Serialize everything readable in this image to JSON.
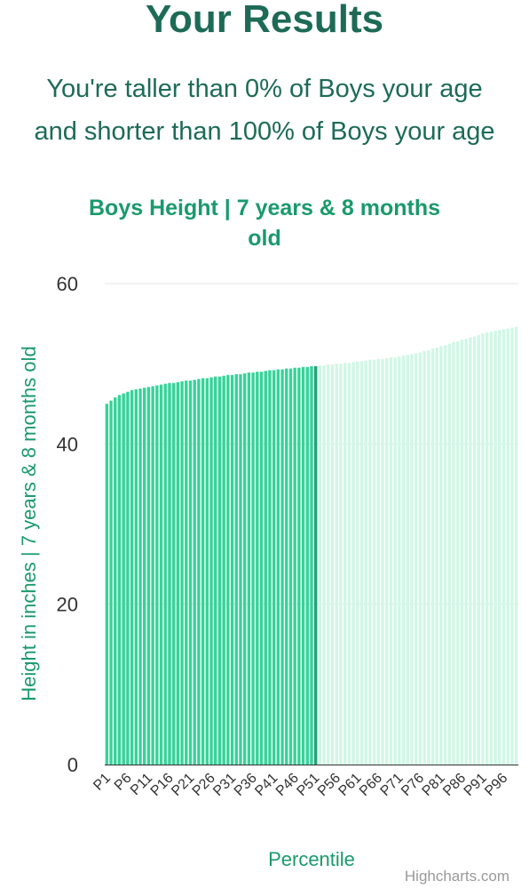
{
  "page": {
    "title": "Your Results",
    "summary_line1": "You're taller than 0% of Boys your age",
    "summary_line2": "and shorter than 100% of Boys your age"
  },
  "chart_data": {
    "type": "bar",
    "title": "Boys Height | 7 years & 8 months old",
    "title_lines": [
      "Boys Height | 7 years & 8 months",
      "old"
    ],
    "xlabel": "Percentile",
    "ylabel": "Height in inches | 7 years & 8 months old",
    "ylim": [
      0,
      60
    ],
    "yticks": [
      0,
      20,
      40,
      60
    ],
    "grid": true,
    "credits": "Highcharts.com",
    "highlight_upto_category": "P51",
    "colors": {
      "highlight": "#36d399",
      "highlight_last": "#1fa374",
      "rest": "#d0f7e6",
      "title": "#1a9a6c",
      "text": "#333333",
      "grid": "#e6e6e6"
    },
    "categories": [
      "P1",
      "P2",
      "P3",
      "P4",
      "P5",
      "P6",
      "P7",
      "P8",
      "P9",
      "P10",
      "P11",
      "P12",
      "P13",
      "P14",
      "P15",
      "P16",
      "P17",
      "P18",
      "P19",
      "P20",
      "P21",
      "P22",
      "P23",
      "P24",
      "P25",
      "P26",
      "P27",
      "P28",
      "P29",
      "P30",
      "P31",
      "P32",
      "P33",
      "P34",
      "P35",
      "P36",
      "P37",
      "P38",
      "P39",
      "P40",
      "P41",
      "P42",
      "P43",
      "P44",
      "P45",
      "P46",
      "P47",
      "P48",
      "P49",
      "P50",
      "P51",
      "P52",
      "P53",
      "P54",
      "P55",
      "P56",
      "P57",
      "P58",
      "P59",
      "P60",
      "P61",
      "P62",
      "P63",
      "P64",
      "P65",
      "P66",
      "P67",
      "P68",
      "P69",
      "P70",
      "P71",
      "P72",
      "P73",
      "P74",
      "P75",
      "P76",
      "P77",
      "P78",
      "P79",
      "P80",
      "P81",
      "P82",
      "P83",
      "P84",
      "P85",
      "P86",
      "P87",
      "P88",
      "P89",
      "P90",
      "P91",
      "P92",
      "P93",
      "P94",
      "P95",
      "P96",
      "P97",
      "P98",
      "P99"
    ],
    "tick_labels": [
      "P1",
      "P6",
      "P11",
      "P16",
      "P21",
      "P26",
      "P31",
      "P36",
      "P41",
      "P46",
      "P51",
      "P56",
      "P61",
      "P66",
      "P71",
      "P76",
      "P81",
      "P86",
      "P91",
      "P96"
    ],
    "values": [
      45.0,
      45.4,
      45.8,
      46.1,
      46.3,
      46.5,
      46.7,
      46.8,
      46.9,
      47.0,
      47.1,
      47.2,
      47.3,
      47.4,
      47.5,
      47.6,
      47.6,
      47.7,
      47.8,
      47.9,
      47.9,
      48.0,
      48.1,
      48.2,
      48.2,
      48.3,
      48.4,
      48.4,
      48.5,
      48.6,
      48.6,
      48.7,
      48.7,
      48.8,
      48.9,
      48.9,
      49.0,
      49.0,
      49.1,
      49.2,
      49.2,
      49.3,
      49.3,
      49.4,
      49.4,
      49.5,
      49.5,
      49.6,
      49.6,
      49.7,
      49.7,
      49.8,
      49.8,
      49.9,
      49.9,
      50.0,
      50.0,
      50.1,
      50.1,
      50.2,
      50.3,
      50.3,
      50.4,
      50.5,
      50.5,
      50.6,
      50.6,
      50.7,
      50.8,
      50.8,
      50.9,
      51.0,
      51.1,
      51.2,
      51.3,
      51.4,
      51.6,
      51.7,
      51.9,
      52.0,
      52.2,
      52.3,
      52.5,
      52.7,
      52.8,
      53.0,
      53.1,
      53.3,
      53.4,
      53.6,
      53.8,
      53.9,
      54.0,
      54.1,
      54.2,
      54.3,
      54.4,
      54.5,
      54.6
    ]
  }
}
